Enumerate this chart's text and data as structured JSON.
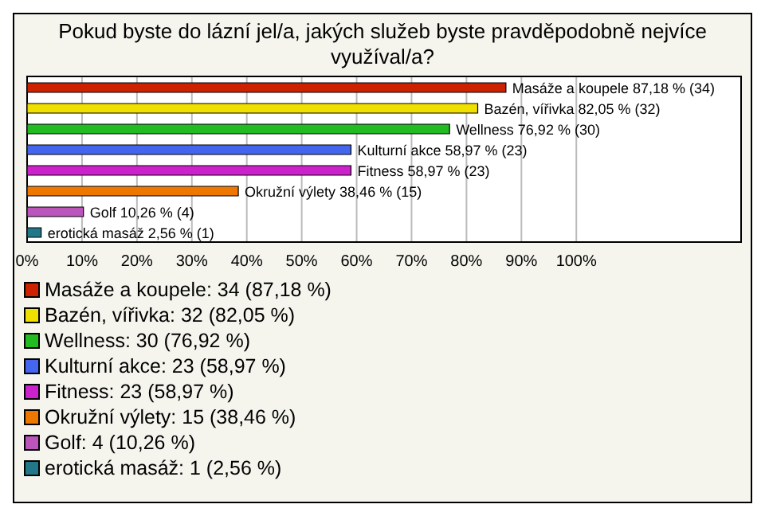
{
  "chart_data": {
    "type": "bar",
    "orientation": "horizontal",
    "title": "Pokud byste do lázní jel/a, jakých služeb byste pravděpodobně nejvíce využíval/a?",
    "categories": [
      "Masáže a koupele",
      "Bazén, vířivka",
      "Wellness",
      "Kulturní akce",
      "Fitness",
      "Okružní výlety",
      "Golf",
      "erotická masáž"
    ],
    "values": [
      87.18,
      82.05,
      76.92,
      58.97,
      58.97,
      38.46,
      10.26,
      2.56
    ],
    "colors": [
      "#cc2200",
      "#f0e000",
      "#22bb22",
      "#4466ee",
      "#cc22cc",
      "#ee7700",
      "#bb55bb",
      "#227788"
    ],
    "value_labels": [
      "87,18 % (34)",
      "82,05 % (32)",
      "76,92 % (30)",
      "58,97 % (23)",
      "58,97 % (23)",
      "38,46 % (15)",
      "10,26 % (4)",
      "2,56 % (1)"
    ],
    "xlim": [
      0,
      130
    ],
    "xticks": [
      {
        "value": 0,
        "label": "0%"
      },
      {
        "value": 10,
        "label": "10%"
      },
      {
        "value": 20,
        "label": "20%"
      },
      {
        "value": 30,
        "label": "30%"
      },
      {
        "value": 40,
        "label": "40%"
      },
      {
        "value": 50,
        "label": "50%"
      },
      {
        "value": 60,
        "label": "60%"
      },
      {
        "value": 70,
        "label": "70%"
      },
      {
        "value": 80,
        "label": "80%"
      },
      {
        "value": 90,
        "label": "90%"
      },
      {
        "value": 100,
        "label": "100%"
      }
    ],
    "grid": "x",
    "tick_labels": "x",
    "annotations": [
      "Masáže a koupele: 34 (87,18 %)",
      "Bazén, vířivka: 32 (82,05 %)",
      "Wellness: 30 (76,92 %)",
      "Kulturní akce: 23 (58,97 %)",
      "Fitness: 23 (58,97 %)",
      "Okružní výlety: 15 (38,46 %)",
      "Golf: 4 (10,26 %)",
      "erotická masáž: 1 (2,56 %)"
    ]
  }
}
